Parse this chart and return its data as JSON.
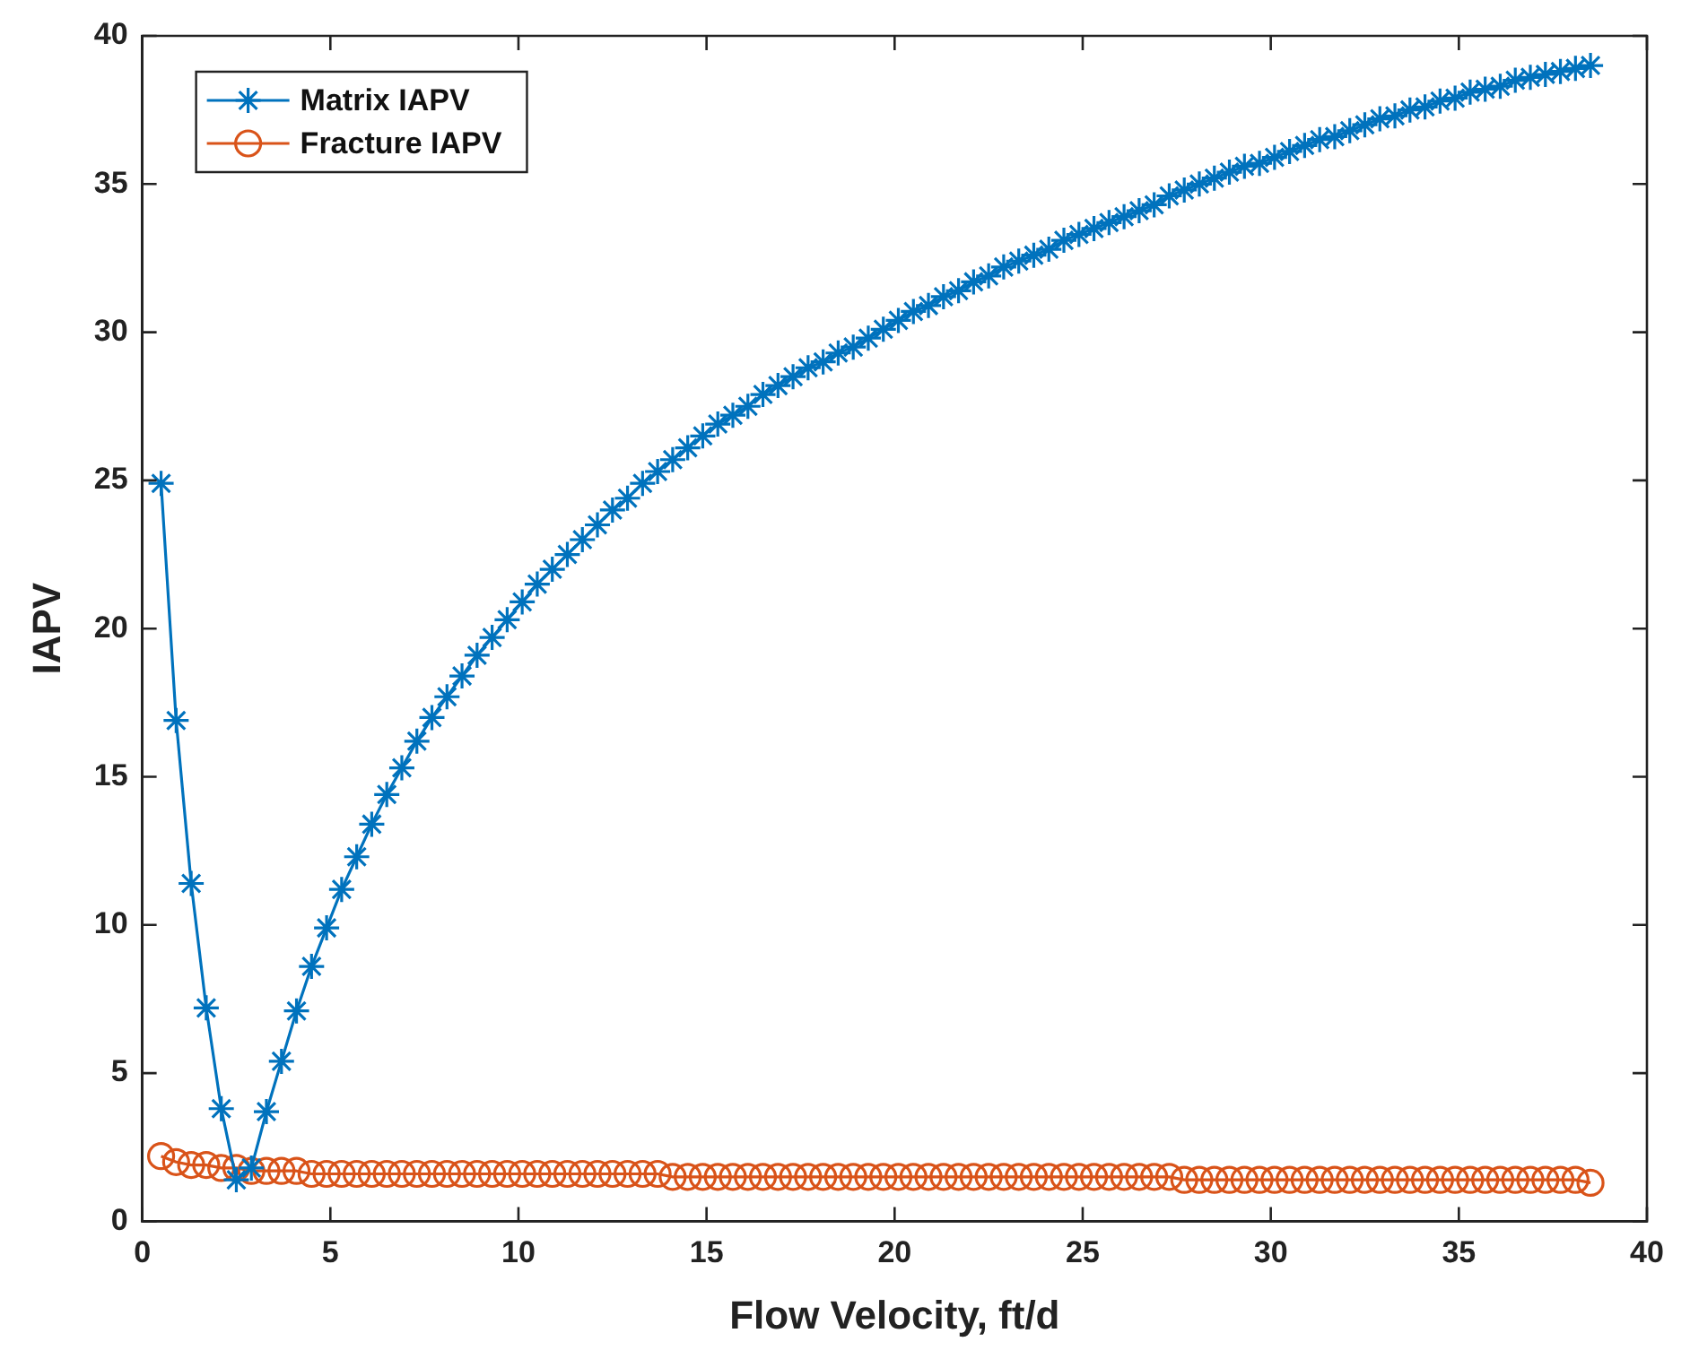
{
  "chart_data": {
    "type": "line",
    "xlabel": "Flow Velocity, ft/d",
    "ylabel": "IAPV",
    "x": [
      0.5,
      0.9,
      1.3,
      1.7,
      2.1,
      2.5,
      2.9,
      3.3,
      3.7,
      4.1,
      4.5,
      4.9,
      5.3,
      5.7,
      6.1,
      6.5,
      6.9,
      7.3,
      7.7,
      8.1,
      8.5,
      8.9,
      9.3,
      9.7,
      10.1,
      10.5,
      10.9,
      11.3,
      11.7,
      12.1,
      12.5,
      12.9,
      13.3,
      13.7,
      14.1,
      14.5,
      14.9,
      15.3,
      15.7,
      16.1,
      16.5,
      16.9,
      17.3,
      17.7,
      18.1,
      18.5,
      18.9,
      19.3,
      19.7,
      20.1,
      20.5,
      20.9,
      21.3,
      21.7,
      22.1,
      22.5,
      22.9,
      23.3,
      23.7,
      24.1,
      24.5,
      24.9,
      25.3,
      25.7,
      26.1,
      26.5,
      26.9,
      27.3,
      27.7,
      28.1,
      28.5,
      28.9,
      29.3,
      29.7,
      30.1,
      30.5,
      30.9,
      31.3,
      31.7,
      32.1,
      32.5,
      32.9,
      33.3,
      33.7,
      34.1,
      34.5,
      34.9,
      35.3,
      35.7,
      36.1,
      36.5,
      36.9,
      37.3,
      37.7,
      38.1,
      38.5
    ],
    "series": [
      {
        "name": "Matrix IAPV",
        "color": "#0072bd",
        "marker": "cross",
        "line_style": "solid",
        "values": [
          24.9,
          16.9,
          11.4,
          7.2,
          3.8,
          1.4,
          1.8,
          3.7,
          5.4,
          7.1,
          8.6,
          9.9,
          11.2,
          12.3,
          13.4,
          14.4,
          15.3,
          16.2,
          17.0,
          17.7,
          18.4,
          19.1,
          19.7,
          20.3,
          20.9,
          21.5,
          22.0,
          22.5,
          23.0,
          23.5,
          24.0,
          24.4,
          24.9,
          25.3,
          25.7,
          26.1,
          26.5,
          26.9,
          27.2,
          27.5,
          27.9,
          28.2,
          28.5,
          28.8,
          29.0,
          29.3,
          29.5,
          29.8,
          30.1,
          30.4,
          30.7,
          30.9,
          31.2,
          31.4,
          31.7,
          31.9,
          32.2,
          32.4,
          32.6,
          32.8,
          33.1,
          33.3,
          33.5,
          33.7,
          33.9,
          34.1,
          34.3,
          34.6,
          34.8,
          35.0,
          35.2,
          35.4,
          35.6,
          35.7,
          35.9,
          36.1,
          36.3,
          36.5,
          36.6,
          36.8,
          37.0,
          37.2,
          37.3,
          37.5,
          37.6,
          37.8,
          37.9,
          38.1,
          38.2,
          38.3,
          38.5,
          38.6,
          38.7,
          38.8,
          38.9,
          39.0
        ]
      },
      {
        "name": "Fracture IAPV",
        "color": "#d95319",
        "marker": "circle",
        "line_style": "solid",
        "values": [
          2.2,
          2.0,
          1.9,
          1.9,
          1.8,
          1.8,
          1.7,
          1.7,
          1.7,
          1.7,
          1.6,
          1.6,
          1.6,
          1.6,
          1.6,
          1.6,
          1.6,
          1.6,
          1.6,
          1.6,
          1.6,
          1.6,
          1.6,
          1.6,
          1.6,
          1.6,
          1.6,
          1.6,
          1.6,
          1.6,
          1.6,
          1.6,
          1.6,
          1.6,
          1.5,
          1.5,
          1.5,
          1.5,
          1.5,
          1.5,
          1.5,
          1.5,
          1.5,
          1.5,
          1.5,
          1.5,
          1.5,
          1.5,
          1.5,
          1.5,
          1.5,
          1.5,
          1.5,
          1.5,
          1.5,
          1.5,
          1.5,
          1.5,
          1.5,
          1.5,
          1.5,
          1.5,
          1.5,
          1.5,
          1.5,
          1.5,
          1.5,
          1.5,
          1.4,
          1.4,
          1.4,
          1.4,
          1.4,
          1.4,
          1.4,
          1.4,
          1.4,
          1.4,
          1.4,
          1.4,
          1.4,
          1.4,
          1.4,
          1.4,
          1.4,
          1.4,
          1.4,
          1.4,
          1.4,
          1.4,
          1.4,
          1.4,
          1.4,
          1.4,
          1.4,
          1.3
        ]
      }
    ],
    "xlim": [
      0,
      40
    ],
    "xticks": [
      0,
      5,
      10,
      15,
      20,
      25,
      30,
      35,
      40
    ],
    "ylim": [
      0,
      40
    ],
    "yticks": [
      0,
      5,
      10,
      15,
      20,
      25,
      30,
      35,
      40
    ],
    "grid": false,
    "legend": "top left"
  }
}
